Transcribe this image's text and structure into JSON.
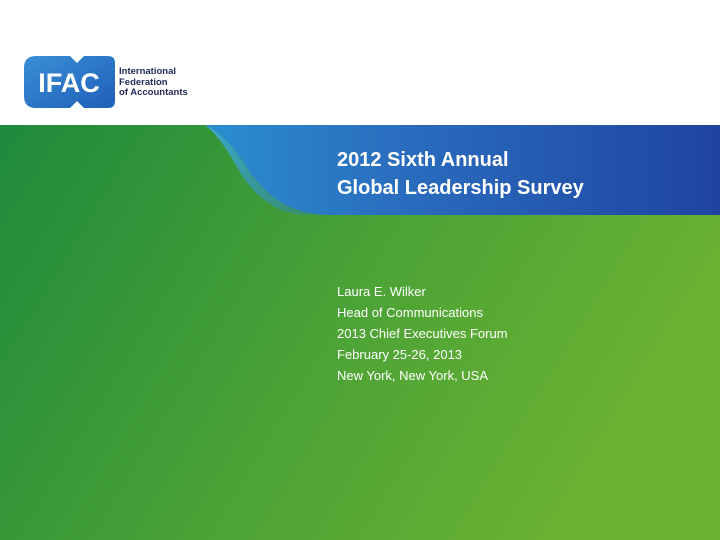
{
  "logo": {
    "mark": "IFAC",
    "name_lines": [
      "International",
      "Federation",
      "of Accountants"
    ],
    "colors": {
      "blue": "#1f5fb8",
      "light_blue": "#3a8fd6",
      "text": "#1f2a55"
    }
  },
  "title": {
    "line1": "2012 Sixth Annual",
    "line2": "Global Leadership Survey"
  },
  "presenter": {
    "name": "Laura E. Wilker",
    "role": "Head of Communications",
    "event": "2013 Chief Executives Forum",
    "dates": "February 25-26, 2013",
    "location": "New York, New York, USA"
  },
  "theme": {
    "green_dark": "#1e8a3c",
    "green_light": "#6ab232",
    "blue_band": "#1f4ea3"
  }
}
